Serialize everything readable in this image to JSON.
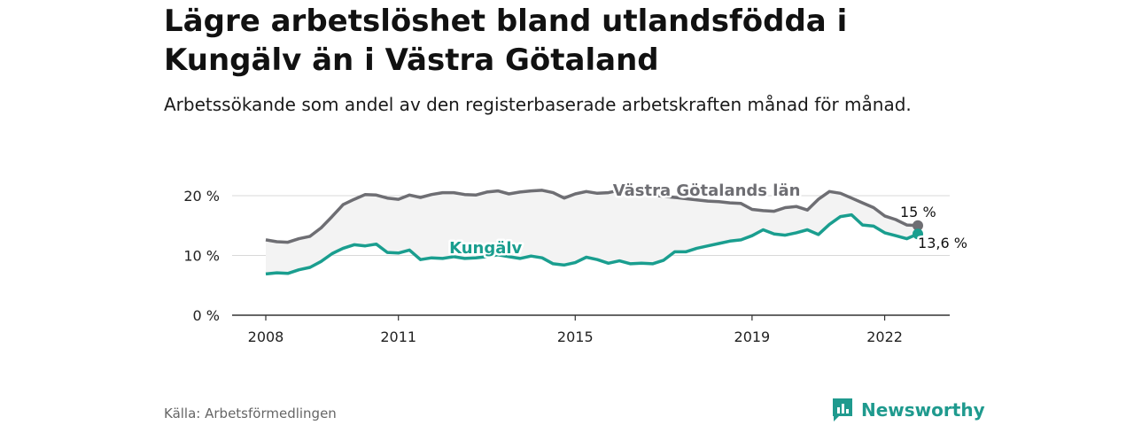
{
  "header": {
    "title": "Lägre arbetslöshet bland utlandsfödda i Kungälv än i Västra Götaland",
    "subtitle": "Arbetssökande som andel av den registerbaserade arbetskraften månad för månad."
  },
  "footer": {
    "source": "Källa: Arbetsförmedlingen",
    "brand": "Newsworthy"
  },
  "colors": {
    "region": "#6e6e73",
    "kungalv": "#1a9e8f",
    "band": "#f3f3f3",
    "grid": "#d9d9d9",
    "axis": "#333333"
  },
  "chart_data": {
    "type": "line",
    "title": "Lägre arbetslöshet bland utlandsfödda i Kungälv än i Västra Götaland",
    "xlabel": "",
    "ylabel": "",
    "xlim": [
      2008.0,
      2022.75
    ],
    "ylim": [
      0,
      20
    ],
    "x_ticks": [
      2008,
      2011,
      2015,
      2019,
      2022
    ],
    "x_tick_labels": [
      "2008",
      "2011",
      "2015",
      "2019",
      "2022"
    ],
    "y_ticks": [
      0,
      10,
      20
    ],
    "y_tick_labels": [
      "0 %",
      "10 %",
      "20 %"
    ],
    "grid": true,
    "series": [
      {
        "name": "Västra Götalands län",
        "label": "Västra Götalands län",
        "end_label": "15 %",
        "points": [
          [
            2008.0,
            12.6
          ],
          [
            2008.25,
            12.3
          ],
          [
            2008.5,
            12.2
          ],
          [
            2008.75,
            12.8
          ],
          [
            2009.0,
            13.2
          ],
          [
            2009.25,
            14.6
          ],
          [
            2009.5,
            16.5
          ],
          [
            2009.75,
            18.5
          ],
          [
            2010.0,
            19.4
          ],
          [
            2010.25,
            20.2
          ],
          [
            2010.5,
            20.1
          ],
          [
            2010.75,
            19.6
          ],
          [
            2011.0,
            19.4
          ],
          [
            2011.25,
            20.1
          ],
          [
            2011.5,
            19.7
          ],
          [
            2011.75,
            20.2
          ],
          [
            2012.0,
            20.5
          ],
          [
            2012.25,
            20.5
          ],
          [
            2012.5,
            20.2
          ],
          [
            2012.75,
            20.1
          ],
          [
            2013.0,
            20.6
          ],
          [
            2013.25,
            20.8
          ],
          [
            2013.5,
            20.3
          ],
          [
            2013.75,
            20.6
          ],
          [
            2014.0,
            20.8
          ],
          [
            2014.25,
            20.9
          ],
          [
            2014.5,
            20.5
          ],
          [
            2014.75,
            19.6
          ],
          [
            2015.0,
            20.3
          ],
          [
            2015.25,
            20.7
          ],
          [
            2015.5,
            20.4
          ],
          [
            2015.75,
            20.5
          ],
          [
            2016.0,
            20.9
          ],
          [
            2016.25,
            20.5
          ],
          [
            2016.5,
            20.3
          ],
          [
            2016.75,
            20.1
          ],
          [
            2017.0,
            19.9
          ],
          [
            2017.25,
            19.7
          ],
          [
            2017.5,
            19.5
          ],
          [
            2017.75,
            19.3
          ],
          [
            2018.0,
            19.1
          ],
          [
            2018.25,
            19.0
          ],
          [
            2018.5,
            18.8
          ],
          [
            2018.75,
            18.7
          ],
          [
            2019.0,
            17.7
          ],
          [
            2019.25,
            17.5
          ],
          [
            2019.5,
            17.4
          ],
          [
            2019.75,
            18.0
          ],
          [
            2020.0,
            18.2
          ],
          [
            2020.25,
            17.6
          ],
          [
            2020.5,
            19.4
          ],
          [
            2020.75,
            20.7
          ],
          [
            2021.0,
            20.4
          ],
          [
            2021.25,
            19.6
          ],
          [
            2021.5,
            18.8
          ],
          [
            2021.75,
            18.0
          ],
          [
            2022.0,
            16.6
          ],
          [
            2022.25,
            16.0
          ],
          [
            2022.5,
            15.1
          ],
          [
            2022.75,
            15.0
          ]
        ]
      },
      {
        "name": "Kungälv",
        "label": "Kungälv",
        "end_label": "13,6 %",
        "points": [
          [
            2008.0,
            6.9
          ],
          [
            2008.25,
            7.1
          ],
          [
            2008.5,
            7.0
          ],
          [
            2008.75,
            7.6
          ],
          [
            2009.0,
            8.0
          ],
          [
            2009.25,
            9.0
          ],
          [
            2009.5,
            10.3
          ],
          [
            2009.75,
            11.2
          ],
          [
            2010.0,
            11.8
          ],
          [
            2010.25,
            11.6
          ],
          [
            2010.5,
            11.9
          ],
          [
            2010.75,
            10.5
          ],
          [
            2011.0,
            10.4
          ],
          [
            2011.25,
            10.9
          ],
          [
            2011.5,
            9.3
          ],
          [
            2011.75,
            9.6
          ],
          [
            2012.0,
            9.5
          ],
          [
            2012.25,
            9.8
          ],
          [
            2012.5,
            9.5
          ],
          [
            2012.75,
            9.6
          ],
          [
            2013.0,
            9.8
          ],
          [
            2013.25,
            10.1
          ],
          [
            2013.5,
            9.8
          ],
          [
            2013.75,
            9.5
          ],
          [
            2014.0,
            9.9
          ],
          [
            2014.25,
            9.6
          ],
          [
            2014.5,
            8.6
          ],
          [
            2014.75,
            8.4
          ],
          [
            2015.0,
            8.8
          ],
          [
            2015.25,
            9.7
          ],
          [
            2015.5,
            9.3
          ],
          [
            2015.75,
            8.7
          ],
          [
            2016.0,
            9.1
          ],
          [
            2016.25,
            8.6
          ],
          [
            2016.5,
            8.7
          ],
          [
            2016.75,
            8.6
          ],
          [
            2017.0,
            9.2
          ],
          [
            2017.25,
            10.6
          ],
          [
            2017.5,
            10.6
          ],
          [
            2017.75,
            11.2
          ],
          [
            2018.0,
            11.6
          ],
          [
            2018.25,
            12.0
          ],
          [
            2018.5,
            12.4
          ],
          [
            2018.75,
            12.6
          ],
          [
            2019.0,
            13.3
          ],
          [
            2019.25,
            14.3
          ],
          [
            2019.5,
            13.6
          ],
          [
            2019.75,
            13.4
          ],
          [
            2020.0,
            13.8
          ],
          [
            2020.25,
            14.3
          ],
          [
            2020.5,
            13.5
          ],
          [
            2020.75,
            15.2
          ],
          [
            2021.0,
            16.5
          ],
          [
            2021.25,
            16.8
          ],
          [
            2021.5,
            15.1
          ],
          [
            2021.75,
            14.9
          ],
          [
            2022.0,
            13.8
          ],
          [
            2022.25,
            13.3
          ],
          [
            2022.5,
            12.8
          ],
          [
            2022.75,
            13.6
          ]
        ]
      }
    ]
  }
}
